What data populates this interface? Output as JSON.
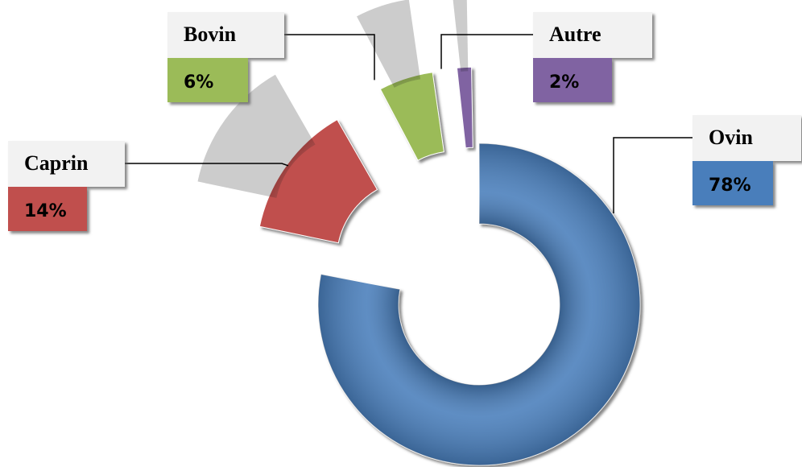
{
  "chart_data": {
    "type": "donut",
    "categories": [
      "Ovin",
      "Caprin",
      "Bovin",
      "Autre"
    ],
    "values": [
      78,
      14,
      6,
      2
    ],
    "value_labels": [
      "78%",
      "14%",
      "6%",
      "2%"
    ],
    "colors": [
      "#4a7ebb",
      "#c0504d",
      "#9bbb59",
      "#8064a2"
    ]
  }
}
